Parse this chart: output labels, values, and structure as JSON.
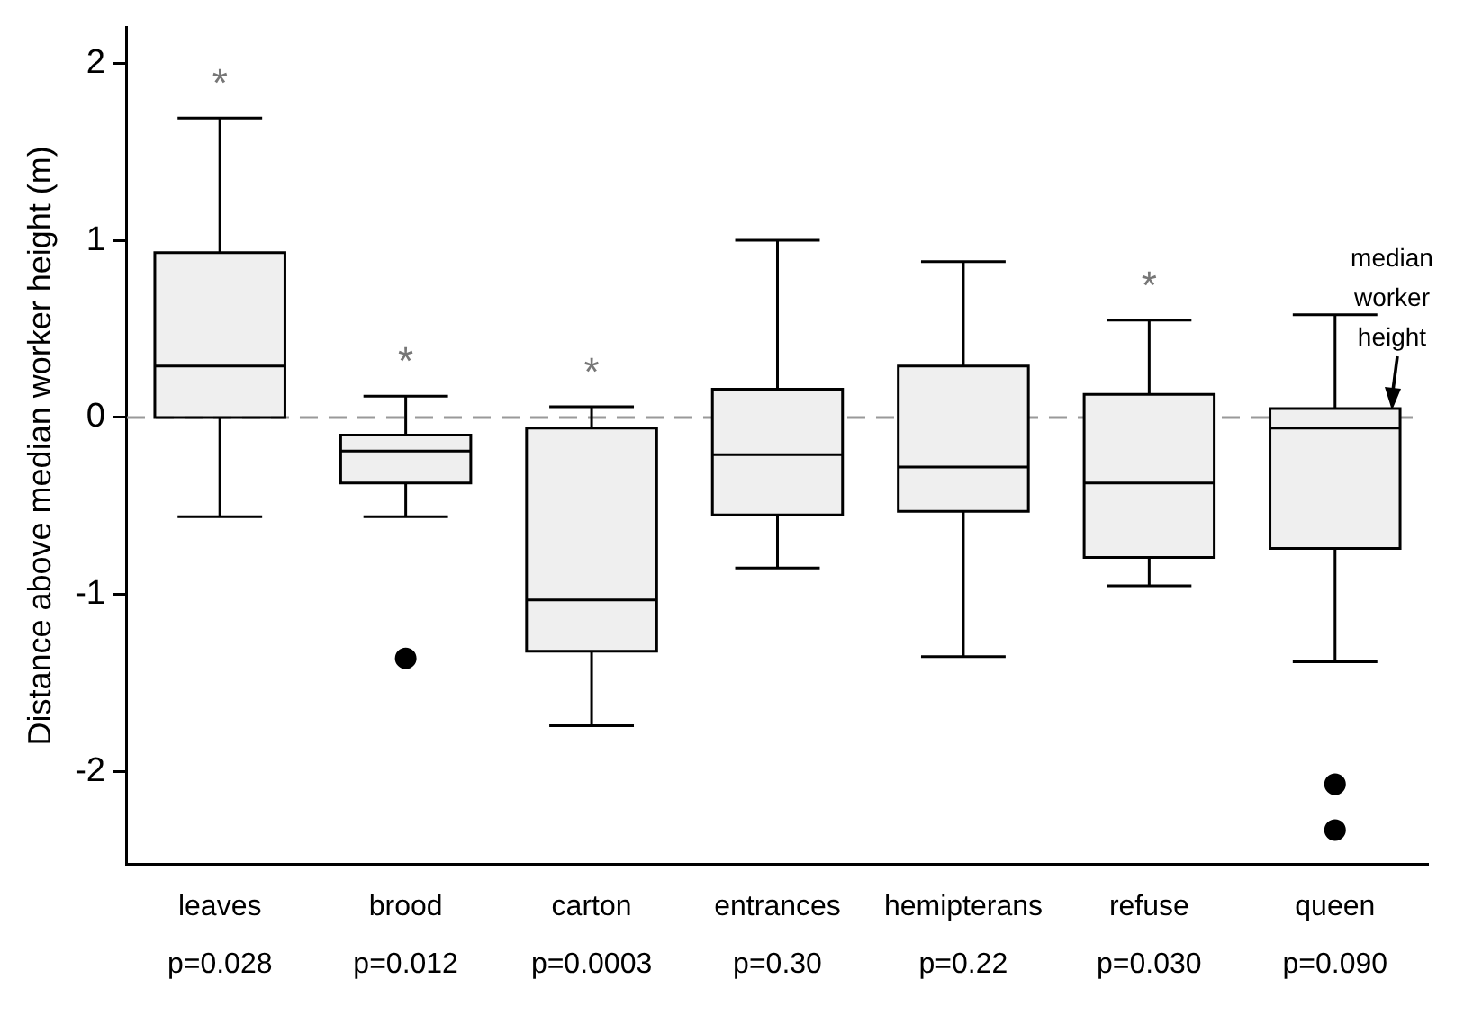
{
  "chart_data": {
    "type": "box",
    "ylabel": "Distance above median worker height (m)",
    "categories": [
      "leaves\np=0.028",
      "brood\np=0.012",
      "carton\np=0.0003",
      "entrances\np=0.30",
      "hemipterans\np=0.22",
      "refuse\np=0.030",
      "queen\np=0.090"
    ],
    "boxes": [
      {
        "low": -0.56,
        "q1": 0,
        "median": 0.29,
        "q3": 0.93,
        "high": 1.69
      },
      {
        "low": -0.56,
        "q1": -0.37,
        "median": -0.19,
        "q3": -0.1,
        "high": 0.12,
        "outliers": [
          -1.36
        ]
      },
      {
        "low": -1.74,
        "q1": -1.32,
        "median": -1.03,
        "q3": -0.06,
        "high": 0.06
      },
      {
        "low": -0.85,
        "q1": -0.55,
        "median": -0.21,
        "q3": 0.16,
        "high": 1.0
      },
      {
        "low": -1.35,
        "q1": -0.53,
        "median": -0.28,
        "q3": 0.29,
        "high": 0.88
      },
      {
        "low": -0.95,
        "q1": -0.79,
        "median": -0.37,
        "q3": 0.13,
        "high": 0.55
      },
      {
        "low": -1.38,
        "q1": -0.74,
        "median": -0.06,
        "q3": 0.05,
        "high": 0.58,
        "outliers": [
          -2.07,
          -2.33
        ]
      }
    ],
    "color": "#efefef",
    "ylim": [
      -2.52,
      2.2
    ],
    "yticks": [
      -2,
      -1,
      0,
      1,
      2
    ],
    "grid": false,
    "legend": false,
    "ref_lines": [
      {
        "axis": "y",
        "value": 0,
        "label": "median worker height",
        "color": "#999999",
        "line_style": "dashed"
      }
    ],
    "annotations": [
      {
        "text": "*",
        "x": "leaves\np=0.028",
        "y": 1.69
      },
      {
        "text": "*",
        "x": "brood\np=0.012",
        "y": 0.12
      },
      {
        "text": "*",
        "x": "carton\np=0.0003",
        "y": 0.06
      },
      {
        "text": "*",
        "x": "refuse\np=0.030",
        "y": 0.55
      }
    ]
  }
}
